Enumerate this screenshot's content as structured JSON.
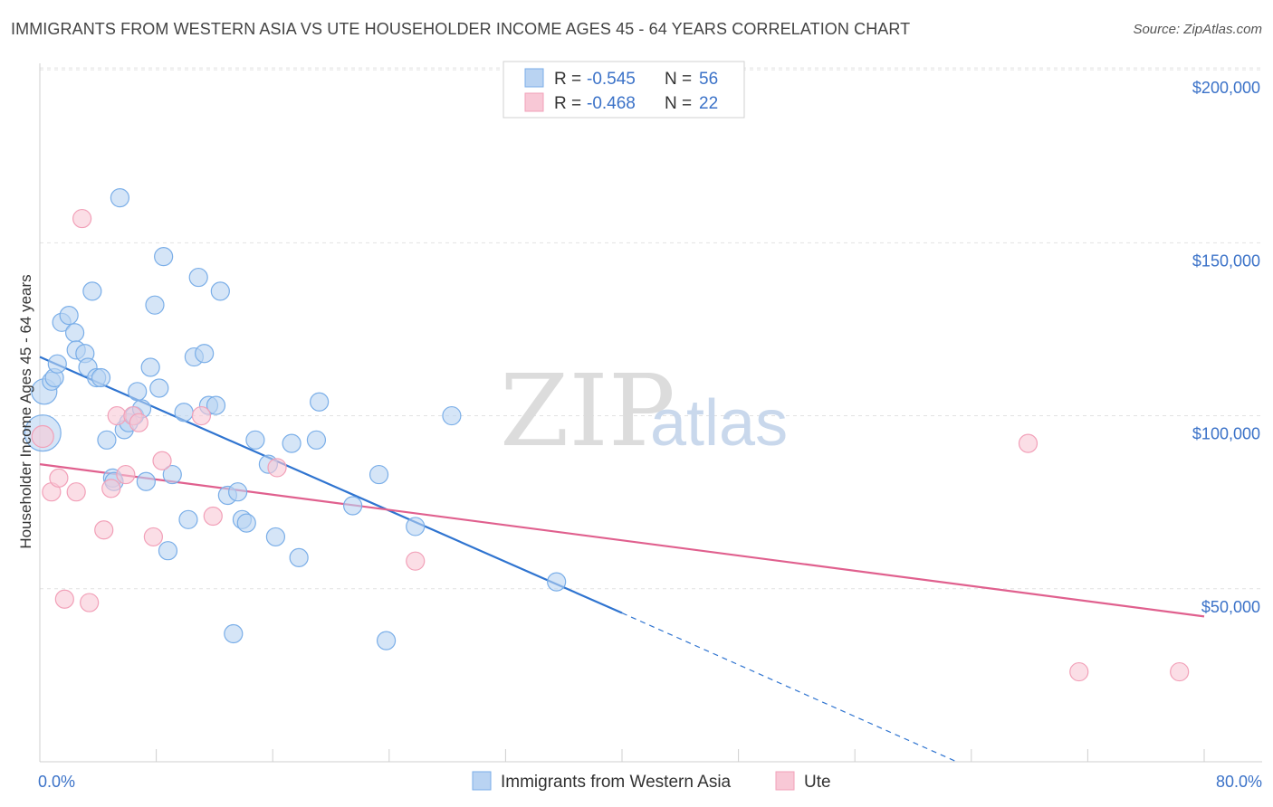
{
  "chart_data": {
    "type": "scatter",
    "title": "IMMIGRANTS FROM WESTERN ASIA VS UTE HOUSEHOLDER INCOME AGES 45 - 64 YEARS CORRELATION CHART",
    "source": "Source: ZipAtlas.com",
    "xlabel": "",
    "ylabel": "Householder Income Ages 45 - 64 years",
    "xlim": [
      0,
      80
    ],
    "ylim": [
      0,
      205000
    ],
    "x_tick_labels": {
      "left": "0.0%",
      "right": "80.0%"
    },
    "y_ticks": [
      {
        "value": 50000,
        "label": "$50,000"
      },
      {
        "value": 100000,
        "label": "$100,000"
      },
      {
        "value": 150000,
        "label": "$150,000"
      },
      {
        "value": 200000,
        "label": "$200,000"
      }
    ],
    "watermark": {
      "zip": "ZIP",
      "atlas": "atlas"
    },
    "legend": [
      {
        "r_label": "R = ",
        "r_value": "-0.545",
        "n_label": "N = ",
        "n_value": "56"
      },
      {
        "r_label": "R = ",
        "r_value": "-0.468",
        "n_label": "N = ",
        "n_value": "22"
      }
    ],
    "series": [
      {
        "name": "Immigrants from Western Asia",
        "color": "#7aaee8",
        "fill": "#b9d3f2",
        "line_color": "#2f74d0",
        "trend": {
          "x0": 0,
          "y0": 117000,
          "x1": 40,
          "y1": 43000,
          "dash_x1": 63,
          "dash_y1": 0
        },
        "points": [
          [
            0.3,
            107000,
            14
          ],
          [
            0.2,
            95000,
            20
          ],
          [
            0.8,
            110000,
            10
          ],
          [
            1.0,
            111000,
            10
          ],
          [
            1.2,
            115000,
            10
          ],
          [
            1.5,
            127000,
            10
          ],
          [
            2.0,
            129000,
            10
          ],
          [
            2.4,
            124000,
            10
          ],
          [
            2.5,
            119000,
            10
          ],
          [
            3.1,
            118000,
            10
          ],
          [
            3.3,
            114000,
            10
          ],
          [
            3.6,
            136000,
            10
          ],
          [
            3.9,
            111000,
            10
          ],
          [
            4.2,
            111000,
            10
          ],
          [
            4.6,
            93000,
            10
          ],
          [
            5.0,
            82000,
            10
          ],
          [
            5.1,
            81000,
            10
          ],
          [
            5.5,
            163000,
            10
          ],
          [
            5.8,
            96000,
            10
          ],
          [
            6.1,
            98000,
            10
          ],
          [
            6.5,
            100000,
            10
          ],
          [
            6.7,
            107000,
            10
          ],
          [
            7.0,
            102000,
            10
          ],
          [
            7.3,
            81000,
            10
          ],
          [
            7.6,
            114000,
            10
          ],
          [
            7.9,
            132000,
            10
          ],
          [
            8.2,
            108000,
            10
          ],
          [
            8.5,
            146000,
            10
          ],
          [
            8.8,
            61000,
            10
          ],
          [
            9.1,
            83000,
            10
          ],
          [
            9.9,
            101000,
            10
          ],
          [
            10.2,
            70000,
            10
          ],
          [
            10.6,
            117000,
            10
          ],
          [
            10.9,
            140000,
            10
          ],
          [
            11.3,
            118000,
            10
          ],
          [
            11.6,
            103000,
            10
          ],
          [
            12.1,
            103000,
            10
          ],
          [
            12.4,
            136000,
            10
          ],
          [
            12.9,
            77000,
            10
          ],
          [
            13.3,
            37000,
            10
          ],
          [
            13.6,
            78000,
            10
          ],
          [
            13.9,
            70000,
            10
          ],
          [
            14.2,
            69000,
            10
          ],
          [
            14.8,
            93000,
            10
          ],
          [
            15.7,
            86000,
            10
          ],
          [
            16.2,
            65000,
            10
          ],
          [
            17.3,
            92000,
            10
          ],
          [
            17.8,
            59000,
            10
          ],
          [
            19.0,
            93000,
            10
          ],
          [
            19.2,
            104000,
            10
          ],
          [
            21.5,
            74000,
            10
          ],
          [
            23.3,
            83000,
            10
          ],
          [
            23.8,
            35000,
            10
          ],
          [
            25.8,
            68000,
            10
          ],
          [
            28.3,
            100000,
            10
          ],
          [
            35.5,
            52000,
            10
          ]
        ]
      },
      {
        "name": "Ute",
        "color": "#f2a0b8",
        "fill": "#f8c8d6",
        "line_color": "#e0608e",
        "trend": {
          "x0": 0,
          "y0": 86000,
          "x1": 80,
          "y1": 42000
        },
        "points": [
          [
            0.2,
            94000,
            12
          ],
          [
            0.8,
            78000,
            10
          ],
          [
            1.3,
            82000,
            10
          ],
          [
            1.7,
            47000,
            10
          ],
          [
            2.5,
            78000,
            10
          ],
          [
            2.9,
            157000,
            10
          ],
          [
            3.4,
            46000,
            10
          ],
          [
            4.4,
            67000,
            10
          ],
          [
            4.9,
            79000,
            10
          ],
          [
            5.3,
            100000,
            10
          ],
          [
            5.9,
            83000,
            10
          ],
          [
            6.4,
            100000,
            10
          ],
          [
            6.8,
            98000,
            10
          ],
          [
            7.8,
            65000,
            10
          ],
          [
            8.4,
            87000,
            10
          ],
          [
            11.1,
            100000,
            10
          ],
          [
            11.9,
            71000,
            10
          ],
          [
            16.3,
            85000,
            10
          ],
          [
            25.8,
            58000,
            10
          ],
          [
            67.9,
            92000,
            10
          ],
          [
            71.4,
            26000,
            10
          ],
          [
            78.3,
            26000,
            10
          ]
        ]
      }
    ]
  }
}
